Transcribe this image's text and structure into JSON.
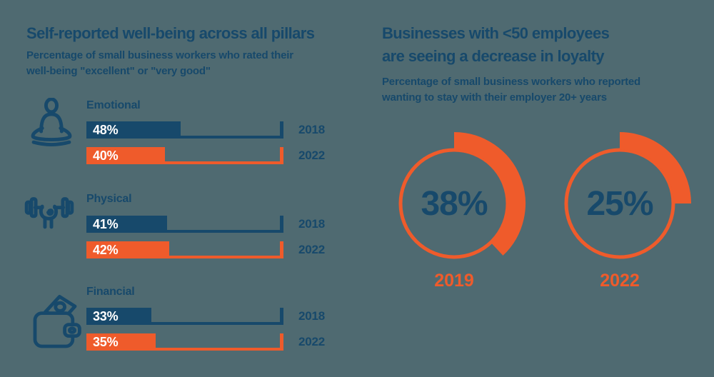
{
  "colors": {
    "navy": "#17496B",
    "orange": "#EF5B2B",
    "background": "#4F6A71",
    "white": "#FFFFFF"
  },
  "left_chart": {
    "title": "Self-reported well-being across all pillars",
    "subtitle_line1": "Percentage of small business workers who rated their",
    "subtitle_line2": "well-being \"excellent\" or \"very good\"",
    "groups": [
      {
        "label": "Emotional",
        "icon": "meditation-icon",
        "bars": [
          {
            "value": 48,
            "label": "48%",
            "year": "2018",
            "color": "navy"
          },
          {
            "value": 40,
            "label": "40%",
            "year": "2022",
            "color": "orange"
          }
        ]
      },
      {
        "label": "Physical",
        "icon": "dumbbell-hand-icon",
        "bars": [
          {
            "value": 41,
            "label": "41%",
            "year": "2018",
            "color": "navy"
          },
          {
            "value": 42,
            "label": "42%",
            "year": "2022",
            "color": "orange"
          }
        ]
      },
      {
        "label": "Financial",
        "icon": "wallet-money-icon",
        "bars": [
          {
            "value": 33,
            "label": "33%",
            "year": "2018",
            "color": "navy"
          },
          {
            "value": 35,
            "label": "35%",
            "year": "2022",
            "color": "orange"
          }
        ]
      }
    ]
  },
  "right_chart": {
    "title_line1": "Businesses with <50 employees",
    "title_line2": "are seeing a decrease in loyalty",
    "subtitle_line1": "Percentage of small business workers who reported",
    "subtitle_line2": "wanting to stay with their employer 20+ years",
    "donuts": [
      {
        "value": 38,
        "label": "38%",
        "year": "2019"
      },
      {
        "value": 25,
        "label": "25%",
        "year": "2022"
      }
    ]
  },
  "chart_data": [
    {
      "type": "bar",
      "orientation": "horizontal",
      "title": "Self-reported well-being across all pillars",
      "subtitle": "Percentage of small business workers who rated their well-being \"excellent\" or \"very good\"",
      "categories": [
        "Emotional",
        "Physical",
        "Financial"
      ],
      "series": [
        {
          "name": "2018",
          "values": [
            48,
            41,
            33
          ],
          "color": "#17496B"
        },
        {
          "name": "2022",
          "values": [
            40,
            42,
            35
          ],
          "color": "#EF5B2B"
        }
      ],
      "unit": "%",
      "xlim": [
        0,
        100
      ],
      "grid": false,
      "value_labels": "inside-bar-left",
      "series_labels": "right-of-track"
    },
    {
      "type": "pie",
      "style": "donut-gauge",
      "title": "Businesses with <50 employees are seeing a decrease in loyalty",
      "subtitle": "Percentage of small business workers who reported wanting to stay with their employer 20+ years",
      "categories": [
        "2019",
        "2022"
      ],
      "values": [
        38,
        25
      ],
      "unit": "%",
      "arc_color": "#EF5B2B",
      "label_position": "center",
      "start_angle_deg": 0,
      "direction": "clockwise"
    }
  ]
}
